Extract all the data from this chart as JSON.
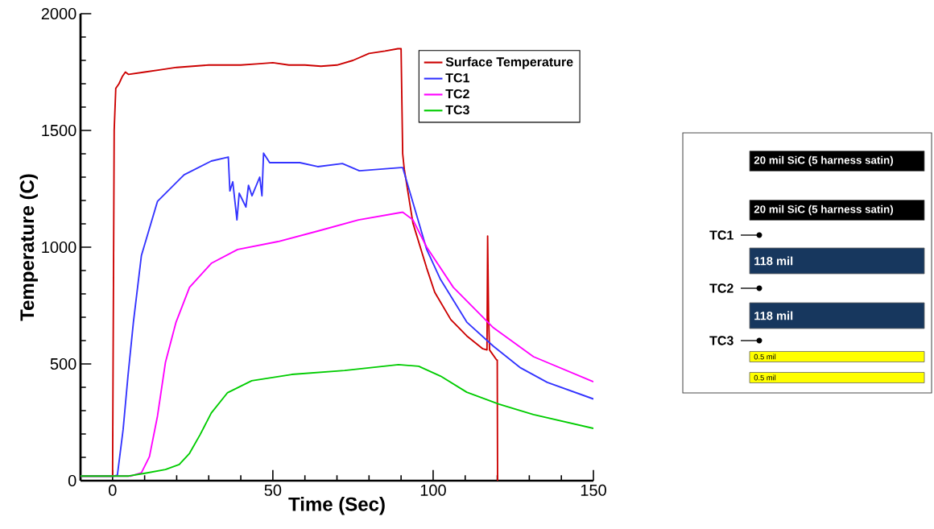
{
  "chart_data": [
    {
      "type": "line",
      "xlabel": "Time (Sec)",
      "ylabel": "Temperature (C)",
      "xlim": [
        -10,
        150
      ],
      "xticks": [
        0,
        50,
        100,
        150
      ],
      "ylim": [
        0,
        2000
      ],
      "yticks": [
        0,
        500,
        1000,
        1500,
        2000
      ],
      "legend": "top right",
      "marker": "none",
      "line_style": "solid",
      "series": [
        {
          "name": "Surface Temperature",
          "color": "#cc0000",
          "x": [
            -10,
            -0.1,
            0,
            0.5,
            1,
            2,
            3,
            4,
            5,
            10,
            15,
            20,
            25,
            30,
            35,
            40,
            45,
            50,
            55,
            60,
            65,
            70,
            75,
            80,
            85,
            89,
            90,
            90.5,
            91,
            93.7,
            98,
            100.5,
            105.5,
            110.5,
            115.5,
            116.8,
            117,
            117.3,
            117.6,
            119.8,
            120,
            120.1
          ],
          "values": [
            20,
            20,
            20,
            1500,
            1680,
            1700,
            1730,
            1750,
            1740,
            1750,
            1760,
            1770,
            1775,
            1780,
            1780,
            1780,
            1785,
            1790,
            1780,
            1780,
            1775,
            1780,
            1800,
            1830,
            1840,
            1850,
            1850,
            1400,
            1334,
            1103,
            910,
            807,
            690,
            620,
            565,
            560,
            1048,
            700,
            560,
            517,
            517,
            0
          ]
        },
        {
          "name": "TC1",
          "color": "#3333ff",
          "x": [
            -10,
            0.5,
            1.5,
            3.3,
            4.8,
            6.5,
            9,
            14,
            22.3,
            30.8,
            36.1,
            36.6,
            37.5,
            38.8,
            39.5,
            41.6,
            42.4,
            43.5,
            45.9,
            46.6,
            47.1,
            49,
            58.4,
            64,
            71.7,
            77,
            90,
            90.5,
            98,
            102.3,
            110.5,
            118.8,
            127.3,
            135.6,
            150
          ],
          "values": [
            20,
            20,
            24,
            220,
            448,
            679,
            965,
            1196,
            1310,
            1369,
            1386,
            1241,
            1280,
            1117,
            1231,
            1172,
            1265,
            1220,
            1300,
            1220,
            1403,
            1362,
            1362,
            1345,
            1358,
            1327,
            1341,
            1341,
            990,
            862,
            679,
            576,
            483,
            421,
            350
          ]
        },
        {
          "name": "TC2",
          "color": "#ff00ff",
          "x": [
            -10,
            5.8,
            9,
            11.5,
            14,
            16.5,
            19.8,
            24,
            30.8,
            39,
            51.6,
            64,
            76.7,
            90.5,
            93.7,
            98,
            106.3,
            118.8,
            131.3,
            150
          ],
          "values": [
            20,
            20,
            34,
            103,
            276,
            507,
            679,
            828,
            931,
            990,
            1024,
            1069,
            1117,
            1150,
            1117,
            1000,
            828,
            655,
            531,
            424
          ]
        },
        {
          "name": "TC3",
          "color": "#00cc00",
          "x": [
            -10,
            5,
            9.8,
            16.5,
            20.8,
            24,
            27.3,
            30.8,
            35.8,
            43.4,
            55.9,
            72.4,
            89.2,
            95.5,
            102.3,
            110.5,
            120.5,
            131.3,
            150
          ],
          "values": [
            20,
            20,
            31,
            48,
            69,
            117,
            197,
            290,
            376,
            428,
            455,
            472,
            497,
            490,
            448,
            379,
            328,
            283,
            224
          ]
        }
      ]
    },
    {
      "type": "other",
      "annotations": [
        "20 mil SiC (5 harness satin)",
        "20 mil SiC (5 harness satin)",
        "TC1",
        "118 mil",
        "TC2",
        "118 mil",
        "TC3",
        "0.5 mil",
        "0.5 mil"
      ]
    }
  ]
}
